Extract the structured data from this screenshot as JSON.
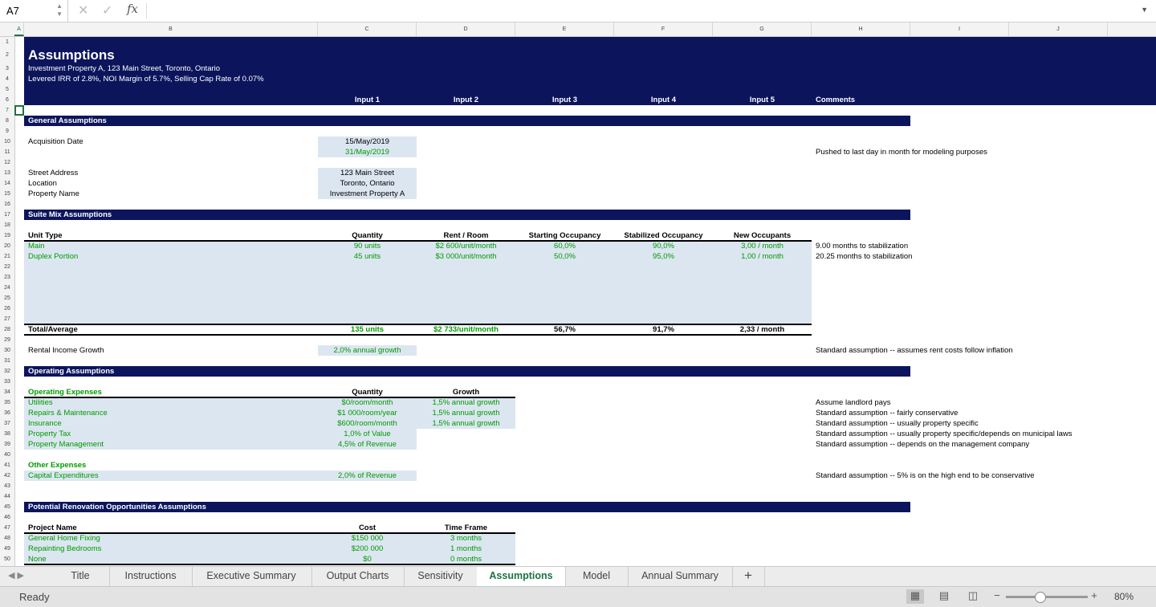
{
  "formula_bar": {
    "cell_ref": "A7",
    "cancel_icon": "✕",
    "enter_icon": "✓",
    "fx": "fx",
    "value": ""
  },
  "columns": [
    "A",
    "B",
    "C",
    "D",
    "E",
    "F",
    "G",
    "H",
    "I",
    "J"
  ],
  "colors": {
    "banner": "#0c155c",
    "input_fill": "#dce6f1",
    "green": "#009a00"
  },
  "cells": [
    {
      "ref": "B2",
      "text": "Assumptions",
      "cls": "title"
    },
    {
      "ref": "B3",
      "text": "Investment Property A, 123 Main Street, Toronto, Ontario",
      "cls": "w"
    },
    {
      "ref": "B4",
      "text": "Levered IRR of 2.8%, NOI Margin of 5.7%, Selling Cap Rate of 0.07%",
      "cls": "w"
    },
    {
      "ref": "C6",
      "text": "Input 1",
      "cls": "w b"
    },
    {
      "ref": "D6",
      "text": "Input 2",
      "cls": "w b"
    },
    {
      "ref": "E6",
      "text": "Input 3",
      "cls": "w b"
    },
    {
      "ref": "F6",
      "text": "Input 4",
      "cls": "w b"
    },
    {
      "ref": "G6",
      "text": "Input 5",
      "cls": "w b"
    },
    {
      "ref": "H6",
      "text": "Comments",
      "cls": "w b"
    },
    {
      "ref": "B8",
      "text": "General Assumptions",
      "cls": "w b"
    },
    {
      "ref": "B10",
      "text": "Acquisition Date",
      "cls": "k"
    },
    {
      "ref": "C10",
      "text": "15/May/2019",
      "cls": "k"
    },
    {
      "ref": "C11",
      "text": "31/May/2019",
      "cls": "g"
    },
    {
      "ref": "H11",
      "text": "Pushed to last day in month for modeling purposes",
      "cls": "k"
    },
    {
      "ref": "B13",
      "text": "Street Address",
      "cls": "k"
    },
    {
      "ref": "C13",
      "text": "123 Main Street",
      "cls": "k"
    },
    {
      "ref": "B14",
      "text": "Location",
      "cls": "k"
    },
    {
      "ref": "C14",
      "text": "Toronto, Ontario",
      "cls": "k"
    },
    {
      "ref": "B15",
      "text": "Property Name",
      "cls": "k"
    },
    {
      "ref": "C15",
      "text": "Investment Property A",
      "cls": "k"
    },
    {
      "ref": "B17",
      "text": "Suite Mix Assumptions",
      "cls": "w b"
    },
    {
      "ref": "B19",
      "text": "Unit Type",
      "cls": "b"
    },
    {
      "ref": "C19",
      "text": "Quantity",
      "cls": "b"
    },
    {
      "ref": "D19",
      "text": "Rent / Room",
      "cls": "b"
    },
    {
      "ref": "E19",
      "text": "Starting Occupancy",
      "cls": "b"
    },
    {
      "ref": "F19",
      "text": "Stabilized Occupancy",
      "cls": "b"
    },
    {
      "ref": "G19",
      "text": "New Occupants",
      "cls": "b"
    },
    {
      "ref": "B20",
      "text": "Main",
      "cls": "g"
    },
    {
      "ref": "C20",
      "text": "90 units",
      "cls": "g"
    },
    {
      "ref": "D20",
      "text": "$2 600/unit/month",
      "cls": "g"
    },
    {
      "ref": "E20",
      "text": "60,0%",
      "cls": "g"
    },
    {
      "ref": "F20",
      "text": "90,0%",
      "cls": "g"
    },
    {
      "ref": "G20",
      "text": "3,00 / month",
      "cls": "g"
    },
    {
      "ref": "H20",
      "text": "9.00 months to stabilization",
      "cls": "k"
    },
    {
      "ref": "B21",
      "text": "Duplex Portion",
      "cls": "g"
    },
    {
      "ref": "C21",
      "text": "45 units",
      "cls": "g"
    },
    {
      "ref": "D21",
      "text": "$3 000/unit/month",
      "cls": "g"
    },
    {
      "ref": "E21",
      "text": "50,0%",
      "cls": "g"
    },
    {
      "ref": "F21",
      "text": "95,0%",
      "cls": "g"
    },
    {
      "ref": "G21",
      "text": "1,00 / month",
      "cls": "g"
    },
    {
      "ref": "H21",
      "text": "20.25 months to stabilization",
      "cls": "k"
    },
    {
      "ref": "B28",
      "text": "Total/Average",
      "cls": "b"
    },
    {
      "ref": "C28",
      "text": "135 units",
      "cls": "g b"
    },
    {
      "ref": "D28",
      "text": "$2 733/unit/month",
      "cls": "g b"
    },
    {
      "ref": "E28",
      "text": "56,7%",
      "cls": "b"
    },
    {
      "ref": "F28",
      "text": "91,7%",
      "cls": "b"
    },
    {
      "ref": "G28",
      "text": "2,33 / month",
      "cls": "b"
    },
    {
      "ref": "B30",
      "text": "Rental Income Growth",
      "cls": "k"
    },
    {
      "ref": "C30",
      "text": "2,0% annual growth",
      "cls": "g"
    },
    {
      "ref": "H30",
      "text": "Standard assumption -- assumes rent costs follow inflation",
      "cls": "k"
    },
    {
      "ref": "B32",
      "text": "Operating Assumptions",
      "cls": "w b"
    },
    {
      "ref": "B34",
      "text": "Operating Expenses",
      "cls": "g b"
    },
    {
      "ref": "C34",
      "text": "Quantity",
      "cls": "b"
    },
    {
      "ref": "D34",
      "text": "Growth",
      "cls": "b"
    },
    {
      "ref": "B35",
      "text": "Utilities",
      "cls": "g"
    },
    {
      "ref": "C35",
      "text": "$0/room/month",
      "cls": "g"
    },
    {
      "ref": "D35",
      "text": "1,5% annual growth",
      "cls": "g"
    },
    {
      "ref": "H35",
      "text": "Assume landlord pays",
      "cls": "k"
    },
    {
      "ref": "B36",
      "text": "Repairs & Maintenance",
      "cls": "g"
    },
    {
      "ref": "C36",
      "text": "$1 000/room/year",
      "cls": "g"
    },
    {
      "ref": "D36",
      "text": "1,5% annual growth",
      "cls": "g"
    },
    {
      "ref": "H36",
      "text": "Standard assumption -- fairly conservative",
      "cls": "k"
    },
    {
      "ref": "B37",
      "text": "Insurance",
      "cls": "g"
    },
    {
      "ref": "C37",
      "text": "$600/room/month",
      "cls": "g"
    },
    {
      "ref": "D37",
      "text": "1,5% annual growth",
      "cls": "g"
    },
    {
      "ref": "H37",
      "text": "Standard assumption -- usually property specific",
      "cls": "k"
    },
    {
      "ref": "B38",
      "text": "Property Tax",
      "cls": "g"
    },
    {
      "ref": "C38",
      "text": "1,0% of Value",
      "cls": "g"
    },
    {
      "ref": "H38",
      "text": "Standard assumption -- usually property specific/depends on municipal laws",
      "cls": "k"
    },
    {
      "ref": "B39",
      "text": "Property Management",
      "cls": "g"
    },
    {
      "ref": "C39",
      "text": "4,5% of Revenue",
      "cls": "g"
    },
    {
      "ref": "H39",
      "text": "Standard assumption -- depends on the management company",
      "cls": "k"
    },
    {
      "ref": "B41",
      "text": "Other Expenses",
      "cls": "g b"
    },
    {
      "ref": "B42",
      "text": "Capital Expenditures",
      "cls": "g"
    },
    {
      "ref": "C42",
      "text": "2,0% of Revenue",
      "cls": "g"
    },
    {
      "ref": "H42",
      "text": "Standard assumption -- 5% is on the high end to be conservative",
      "cls": "k"
    },
    {
      "ref": "B45",
      "text": "Potential Renovation Opportunities Assumptions",
      "cls": "w b"
    },
    {
      "ref": "B47",
      "text": "Project Name",
      "cls": "b"
    },
    {
      "ref": "C47",
      "text": "Cost",
      "cls": "b"
    },
    {
      "ref": "D47",
      "text": "Time Frame",
      "cls": "b"
    },
    {
      "ref": "B48",
      "text": "General Home Fixing",
      "cls": "g"
    },
    {
      "ref": "C48",
      "text": "$150 000",
      "cls": "g"
    },
    {
      "ref": "D48",
      "text": "3 months",
      "cls": "g"
    },
    {
      "ref": "B49",
      "text": "Repainting Bedrooms",
      "cls": "g"
    },
    {
      "ref": "C49",
      "text": "$200 000",
      "cls": "g"
    },
    {
      "ref": "D49",
      "text": "1 months",
      "cls": "g"
    },
    {
      "ref": "B50",
      "text": "None",
      "cls": "g"
    },
    {
      "ref": "C50",
      "text": "$0",
      "cls": "g"
    },
    {
      "ref": "D50",
      "text": "0 months",
      "cls": "g"
    }
  ],
  "sheet_tabs": [
    "Title",
    "Instructions",
    "Executive Summary",
    "Output Charts",
    "Sensitivity",
    "Assumptions",
    "Model",
    "Annual Summary"
  ],
  "active_tab": "Assumptions",
  "add_sheet": "+",
  "status": {
    "text": "Ready",
    "zoom": "80%",
    "zoom_percent": 80
  }
}
